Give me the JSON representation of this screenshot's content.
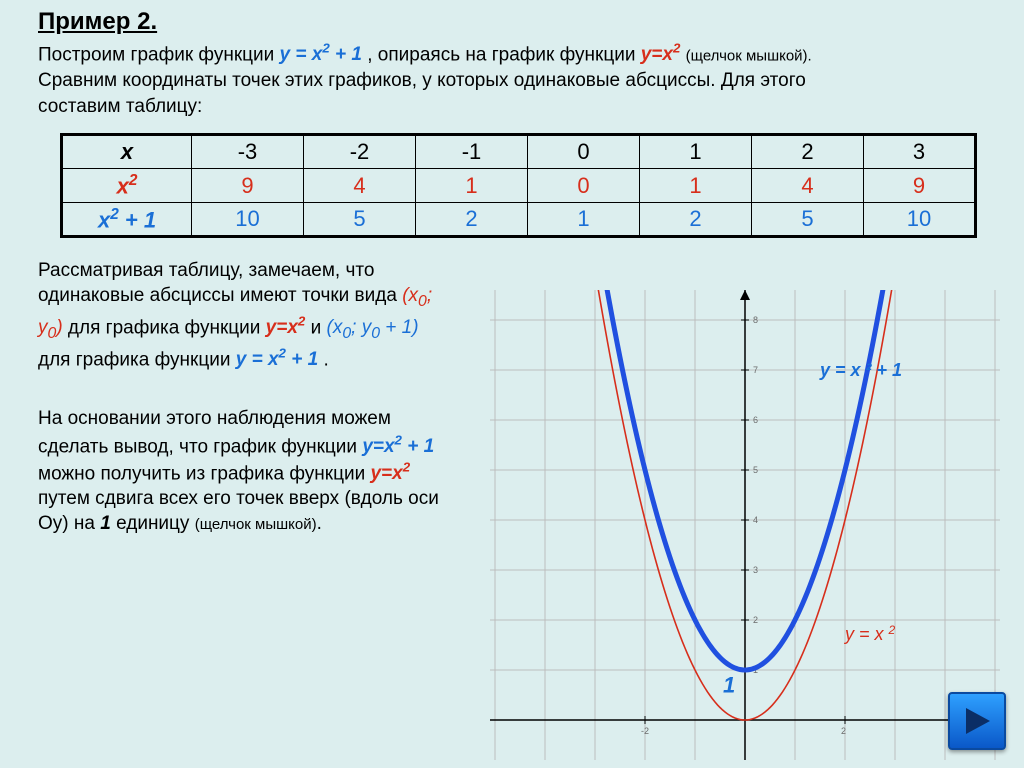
{
  "title": "Пример 2.",
  "intro": {
    "lead": "Построим график функции ",
    "f1": "y = x",
    "f1_sup": "2",
    "f1_tail": " + 1",
    "mid1": ", опираясь на график функции ",
    "f2": "y=x",
    "f2_sup": "2",
    "hint": " (щелчок мышкой).",
    "line2a": "Сравним координаты точек этих графиков, у которых одинаковые абсциссы. Для этого",
    "line2b": "составим  таблицу:"
  },
  "table": {
    "headers": [
      "x",
      "x² + 1"
    ],
    "row_x_label": "x",
    "row_x": [
      "-3",
      "-2",
      "-1",
      "0",
      "1",
      "2",
      "3"
    ],
    "row_x2_label_a": "x",
    "row_x2_label_sup": "2",
    "row_x2": [
      "9",
      "4",
      "1",
      "0",
      "1",
      "4",
      "9"
    ],
    "row_x2p1_label_a": "x",
    "row_x2p1_label_sup": "2",
    "row_x2p1_label_b": " + 1",
    "row_x2p1": [
      "10",
      "5",
      "2",
      "1",
      "2",
      "5",
      "10"
    ]
  },
  "para1": {
    "t1": "Рассматривая таблицу, замечаем, что одинаковые абсциссы имеют точки вида ",
    "s1": "(x",
    "s1sub": "0",
    "s1b": "; y",
    "s1sub2": "0",
    "s1c": ")",
    "t2": " для графика функции ",
    "f_yx2_a": "y=x",
    "f_yx2_sup": "2",
    "t3": " и ",
    "s2": "(x",
    "s2sub": "0",
    "s2b": "; y",
    "s2sub2": "0",
    "s2c": " + 1)",
    "t4": " для графика функции ",
    "f_yx2p1_a": "y = x",
    "f_yx2p1_sup": "2",
    "f_yx2p1_b": " + 1",
    "dot": "."
  },
  "para2": {
    "t1": "На основании этого наблюдения можем сделать вывод, что график функции ",
    "f1a": "y=x",
    "f1sup": "2",
    "f1b": " + 1",
    "t2": " можно получить из графика функции ",
    "f2a": "y=x",
    "f2sup": "2",
    "t3": " путем сдвига всех его точек вверх (вдоль оси Оy) на ",
    "one": "1",
    "t4": " единицу ",
    "hint": "(щелчок мышкой)",
    "dot2": "."
  },
  "chart": {
    "type": "line",
    "x_range": [
      -3,
      3
    ],
    "y_range": [
      -0.6,
      8.6
    ],
    "y_ticks": [
      1,
      2,
      3,
      4,
      5,
      6,
      7,
      8
    ],
    "x_ticks": [
      -2,
      2
    ],
    "grid_color": "#bdbdbd",
    "axis_color": "#000000",
    "background": "#dceeee",
    "curves": [
      {
        "name": "y=x^2",
        "color": "#d72e1b",
        "width": 1.6,
        "shift": 0
      },
      {
        "name": "y=x^2+1",
        "color": "#2050e0",
        "width": 5,
        "shift": 1
      }
    ],
    "label_blue": "y = x ² + 1",
    "label_red_a": "y = x ",
    "label_red_sup": "2",
    "one_label": "1",
    "label_fontsize": 18
  }
}
